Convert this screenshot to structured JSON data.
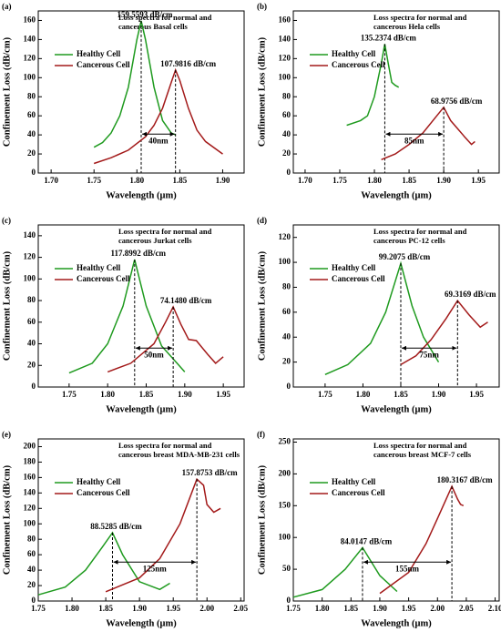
{
  "chart_data": [
    {
      "type": "line",
      "label": "(a)",
      "title": "Loss spectra for normal and cancerous Basal cells",
      "xlabel": "Wavelength (μm)",
      "ylabel": "Confinement Loss (dB/cm)",
      "xlim": [
        1.685,
        1.925
      ],
      "xticks": [
        {
          "value": 1.7,
          "label": "1.70"
        },
        {
          "value": 1.75,
          "label": "1.75"
        },
        {
          "value": 1.8,
          "label": "1.80"
        },
        {
          "value": 1.85,
          "label": "1.85"
        },
        {
          "value": 1.9,
          "label": "1.90"
        }
      ],
      "ylim": [
        0,
        170
      ],
      "yticks": [
        0,
        20,
        40,
        60,
        80,
        100,
        120,
        140,
        160
      ],
      "annotation": "40nm",
      "series": [
        {
          "name": "Healthy Cell",
          "color": "#1e9a1e",
          "peak_label": "159.5593 dB/cm",
          "x": [
            1.75,
            1.76,
            1.77,
            1.78,
            1.79,
            1.8,
            1.805,
            1.81,
            1.82,
            1.83,
            1.84,
            1.845
          ],
          "values": [
            27,
            32,
            42,
            60,
            90,
            140,
            159.5593,
            140,
            90,
            55,
            42,
            40
          ]
        },
        {
          "name": "Cancerous Cell",
          "color": "#a31a1a",
          "peak_label": "107.9816 dB/cm",
          "x": [
            1.75,
            1.77,
            1.79,
            1.81,
            1.82,
            1.83,
            1.84,
            1.845,
            1.85,
            1.86,
            1.87,
            1.88,
            1.9
          ],
          "values": [
            10,
            16,
            24,
            38,
            50,
            68,
            95,
            107.9816,
            97,
            68,
            45,
            33,
            20
          ]
        }
      ]
    },
    {
      "type": "line",
      "label": "(b)",
      "title": "Loss spectra for normal and cancerous Hela cells",
      "xlabel": "Wavelength (μm)",
      "ylabel": "Confinement Loss (dB/cm)",
      "xlim": [
        1.683,
        1.98
      ],
      "xticks": [
        {
          "value": 1.7,
          "label": "1.70"
        },
        {
          "value": 1.75,
          "label": "1.75"
        },
        {
          "value": 1.8,
          "label": "1.80"
        },
        {
          "value": 1.85,
          "label": "1.85"
        },
        {
          "value": 1.9,
          "label": "1.90"
        },
        {
          "value": 1.95,
          "label": "1.95"
        }
      ],
      "ylim": [
        0,
        170
      ],
      "yticks": [
        0,
        20,
        40,
        60,
        80,
        100,
        120,
        140,
        160
      ],
      "annotation": "85nm",
      "series": [
        {
          "name": "Healthy Cell",
          "color": "#1e9a1e",
          "peak_label": "135.2374 dB/cm",
          "x": [
            1.76,
            1.78,
            1.79,
            1.8,
            1.81,
            1.815,
            1.82,
            1.825,
            1.83,
            1.835
          ],
          "values": [
            50,
            55,
            60,
            80,
            115,
            135.2374,
            115,
            95,
            92,
            90
          ]
        },
        {
          "name": "Cancerous Cell",
          "color": "#a31a1a",
          "peak_label": "68.9756 dB/cm",
          "x": [
            1.81,
            1.83,
            1.85,
            1.87,
            1.89,
            1.9,
            1.91,
            1.93,
            1.94,
            1.945
          ],
          "values": [
            14,
            20,
            30,
            42,
            60,
            68.9756,
            55,
            38,
            30,
            33
          ]
        }
      ]
    },
    {
      "type": "line",
      "label": "(c)",
      "title": "Loss spectra for normal and cancerous Jurkat cells",
      "xlabel": "Wavelength (μm)",
      "ylabel": "Confinement Loss (dB/cm)",
      "xlim": [
        1.71,
        1.977
      ],
      "xticks": [
        {
          "value": 1.75,
          "label": "1.75"
        },
        {
          "value": 1.8,
          "label": "1.80"
        },
        {
          "value": 1.85,
          "label": "1.85"
        },
        {
          "value": 1.9,
          "label": "1.90"
        },
        {
          "value": 1.95,
          "label": "1.95"
        }
      ],
      "ylim": [
        0,
        150
      ],
      "yticks": [
        0,
        20,
        40,
        60,
        80,
        100,
        120,
        140
      ],
      "annotation": "50nm",
      "series": [
        {
          "name": "Healthy Cell",
          "color": "#1e9a1e",
          "peak_label": "117.8992 dB/cm",
          "x": [
            1.75,
            1.78,
            1.8,
            1.82,
            1.835,
            1.85,
            1.87,
            1.89,
            1.9
          ],
          "values": [
            13,
            22,
            40,
            75,
            117.8992,
            75,
            38,
            22,
            14
          ]
        },
        {
          "name": "Cancerous Cell",
          "color": "#a31a1a",
          "peak_label": "74.1480 dB/cm",
          "x": [
            1.8,
            1.83,
            1.86,
            1.875,
            1.885,
            1.895,
            1.905,
            1.915,
            1.93,
            1.94,
            1.95
          ],
          "values": [
            14,
            22,
            40,
            60,
            74.148,
            58,
            44,
            43,
            30,
            22,
            28
          ]
        }
      ]
    },
    {
      "type": "line",
      "label": "(d)",
      "title": "Loss spectra for normal and cancerous PC-12 cells",
      "xlabel": "Wavelength (μm)",
      "ylabel": "Confinement Loss (dB/cm)",
      "xlim": [
        1.708,
        1.98
      ],
      "xticks": [
        {
          "value": 1.75,
          "label": "1.75"
        },
        {
          "value": 1.8,
          "label": "1.80"
        },
        {
          "value": 1.85,
          "label": "1.85"
        },
        {
          "value": 1.9,
          "label": "1.90"
        },
        {
          "value": 1.95,
          "label": "1.95"
        }
      ],
      "ylim": [
        0,
        130
      ],
      "yticks": [
        0,
        20,
        40,
        60,
        80,
        100,
        120
      ],
      "annotation": "75nm",
      "series": [
        {
          "name": "Healthy Cell",
          "color": "#1e9a1e",
          "peak_label": "99.2075 dB/cm",
          "x": [
            1.75,
            1.78,
            1.81,
            1.83,
            1.85,
            1.865,
            1.88,
            1.9
          ],
          "values": [
            10,
            18,
            35,
            60,
            99.2075,
            65,
            40,
            20
          ]
        },
        {
          "name": "Cancerous Cell",
          "color": "#a31a1a",
          "peak_label": "69.3169 dB/cm",
          "x": [
            1.85,
            1.87,
            1.89,
            1.91,
            1.925,
            1.94,
            1.955,
            1.965
          ],
          "values": [
            18,
            25,
            38,
            55,
            69.3169,
            58,
            48,
            52
          ]
        }
      ]
    },
    {
      "type": "line",
      "label": "(e)",
      "title": "Loss spectra for normal and cancerous breast MDA-MB-231 cells",
      "xlabel": "Wavelength (μm)",
      "ylabel": "Confinement Loss (dB/cm)",
      "xlim": [
        1.75,
        2.055
      ],
      "xticks": [
        {
          "value": 1.75,
          "label": "1.75"
        },
        {
          "value": 1.8,
          "label": "1.80"
        },
        {
          "value": 1.85,
          "label": "1.85"
        },
        {
          "value": 1.9,
          "label": "1.90"
        },
        {
          "value": 1.95,
          "label": "1.95"
        },
        {
          "value": 2.0,
          "label": "2.00"
        },
        {
          "value": 2.05,
          "label": "2.05"
        }
      ],
      "ylim": [
        0,
        210
      ],
      "yticks": [
        0,
        20,
        40,
        60,
        80,
        100,
        120,
        140,
        160,
        180,
        200
      ],
      "annotation": "125nm",
      "series": [
        {
          "name": "Healthy Cell",
          "color": "#1e9a1e",
          "peak_label": "88.5285 dB/cm",
          "x": [
            1.75,
            1.79,
            1.82,
            1.845,
            1.86,
            1.875,
            1.9,
            1.93,
            1.945
          ],
          "values": [
            8,
            18,
            40,
            70,
            88.5285,
            60,
            25,
            15,
            23
          ]
        },
        {
          "name": "Cancerous Cell",
          "color": "#a31a1a",
          "peak_label": "157.8753 dB/cm",
          "x": [
            1.85,
            1.9,
            1.93,
            1.96,
            1.985,
            1.995,
            2.0,
            2.01,
            2.02
          ],
          "values": [
            12,
            30,
            55,
            100,
            157.8753,
            150,
            125,
            115,
            120
          ]
        }
      ]
    },
    {
      "type": "line",
      "label": "(f)",
      "title": "Loss spectra for normal and cancerous breast MCF-7 cells",
      "xlabel": "Wavelength (μm)",
      "ylabel": "Confinement Loss (dB/cm)",
      "xlim": [
        1.75,
        2.107
      ],
      "xticks": [
        {
          "value": 1.75,
          "label": "1.75"
        },
        {
          "value": 1.8,
          "label": "1.80"
        },
        {
          "value": 1.85,
          "label": "1.85"
        },
        {
          "value": 1.9,
          "label": "1.90"
        },
        {
          "value": 1.95,
          "label": "1.95"
        },
        {
          "value": 2.0,
          "label": "2.00"
        },
        {
          "value": 2.05,
          "label": "2.05"
        },
        {
          "value": 2.1,
          "label": "2.10"
        }
      ],
      "ylim": [
        0,
        255
      ],
      "yticks": [
        0,
        50,
        100,
        150,
        200,
        250
      ],
      "annotation": "155nm",
      "series": [
        {
          "name": "Healthy Cell",
          "color": "#1e9a1e",
          "peak_label": "84.0147 dB/cm",
          "x": [
            1.75,
            1.8,
            1.84,
            1.87,
            1.9,
            1.93
          ],
          "values": [
            6,
            18,
            50,
            84.0147,
            40,
            15
          ]
        },
        {
          "name": "Cancerous Cell",
          "color": "#a31a1a",
          "peak_label": "180.3167 dB/cm",
          "x": [
            1.9,
            1.95,
            1.98,
            2.0,
            2.025,
            2.035,
            2.04,
            2.045
          ],
          "values": [
            12,
            45,
            90,
            130,
            180.3167,
            160,
            152,
            150
          ]
        }
      ]
    }
  ]
}
